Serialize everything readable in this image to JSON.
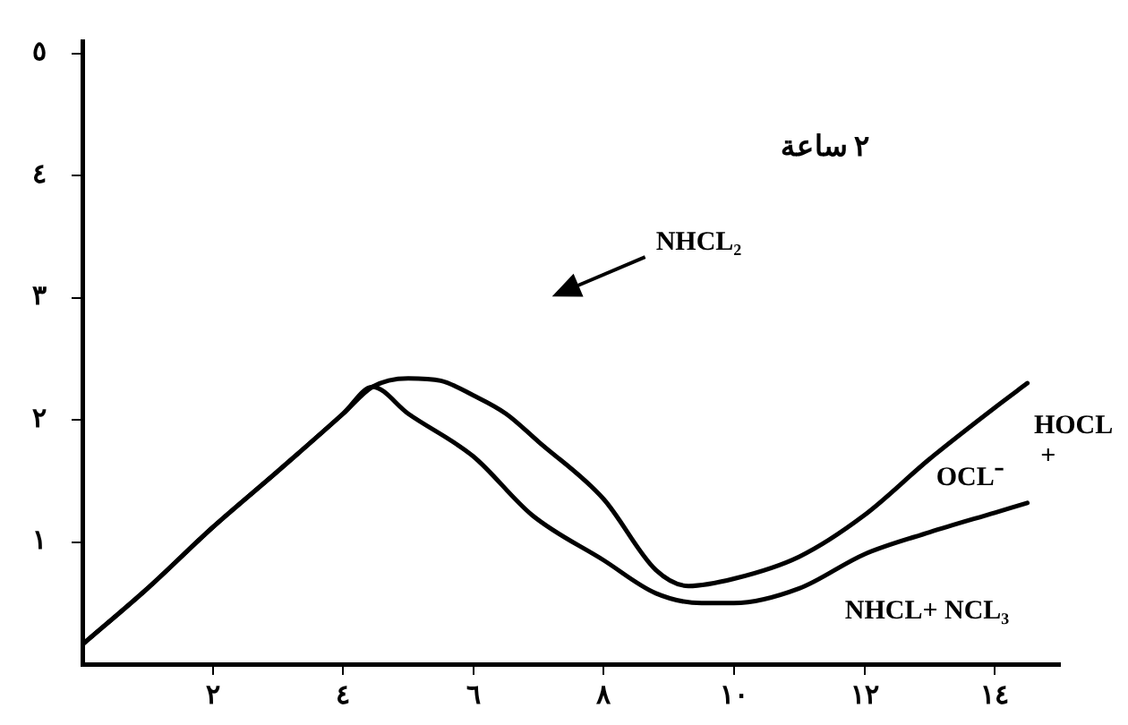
{
  "chart_data": {
    "type": "line",
    "title": "٢ ساعة",
    "xlim": [
      0,
      15
    ],
    "ylim": [
      0,
      5.1
    ],
    "xticks": [
      {
        "value": 2,
        "label": "٢"
      },
      {
        "value": 4,
        "label": "٤"
      },
      {
        "value": 6,
        "label": "٦"
      },
      {
        "value": 8,
        "label": "٨"
      },
      {
        "value": 10,
        "label": "١٠"
      },
      {
        "value": 12,
        "label": "١٢"
      },
      {
        "value": 14,
        "label": "١٤"
      }
    ],
    "yticks": [
      {
        "value": 1,
        "label": "١"
      },
      {
        "value": 2,
        "label": "٢"
      },
      {
        "value": 3,
        "label": "٣"
      },
      {
        "value": 4,
        "label": "٤"
      },
      {
        "value": 5,
        "label": "٥"
      }
    ],
    "grid": false,
    "legend": false,
    "marker": "none",
    "line_style": "solid",
    "series": [
      {
        "color": "#000000",
        "x": [
          0,
          1,
          2,
          3,
          4,
          4.45,
          5,
          5.5,
          6,
          6.5,
          7,
          8,
          8.8,
          9.3,
          10,
          11,
          12,
          13,
          14,
          14.5
        ],
        "values": [
          0.16,
          0.62,
          1.12,
          1.58,
          2.05,
          2.27,
          2.34,
          2.32,
          2.2,
          2.05,
          1.82,
          1.35,
          0.77,
          0.64,
          0.7,
          0.88,
          1.22,
          1.68,
          2.1,
          2.3
        ]
      },
      {
        "color": "#000000",
        "x": [
          0,
          1,
          2,
          3,
          4,
          4.45,
          5,
          6,
          6.9,
          8,
          8.8,
          9.5,
          10,
          11,
          12,
          13,
          14,
          14.5
        ],
        "values": [
          0.16,
          0.62,
          1.12,
          1.58,
          2.05,
          2.27,
          2.05,
          1.7,
          1.22,
          0.85,
          0.58,
          0.5,
          0.5,
          0.62,
          0.9,
          1.08,
          1.24,
          1.32
        ]
      }
    ],
    "annotations": [
      "NHCL₂",
      "HOCL",
      "+",
      "OCL⁻",
      "NHCL+ NCL₃"
    ]
  }
}
